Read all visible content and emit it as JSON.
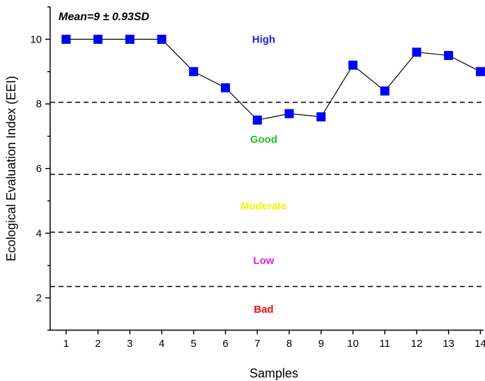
{
  "chart_data": {
    "type": "line",
    "title": "",
    "annotation": "Mean=9 ± 0.93SD",
    "xlabel": "Samples",
    "ylabel": "Ecological Evaluation Index (EEI)",
    "x": [
      1,
      2,
      3,
      4,
      5,
      6,
      7,
      8,
      9,
      10,
      11,
      12,
      13,
      14
    ],
    "x_tick_labels": [
      "1",
      "2",
      "3",
      "4",
      "5",
      "6",
      "7",
      "8",
      "9",
      "10",
      "11",
      "12",
      "13",
      "14"
    ],
    "xlim": [
      0.5,
      14.1
    ],
    "ylim": [
      1.0,
      11.0
    ],
    "y_ticks": [
      2,
      4,
      6,
      8,
      10
    ],
    "y_tick_labels": [
      "2",
      "4",
      "6",
      "8",
      "10"
    ],
    "series": [
      {
        "values": [
          10,
          10,
          10,
          10,
          9.0,
          8.5,
          7.5,
          7.7,
          7.6,
          9.2,
          8.4,
          9.6,
          9.5,
          9.0
        ],
        "color": "#0000ff",
        "marker": "square",
        "line_color": "#000000"
      }
    ],
    "thresholds": [
      {
        "y": 8.05,
        "style": "dashed"
      },
      {
        "y": 5.82,
        "style": "dashed"
      },
      {
        "y": 4.03,
        "style": "dashed"
      },
      {
        "y": 2.35,
        "style": "dashed"
      }
    ],
    "zones": [
      {
        "label": "High",
        "y": 10.0,
        "x": 7.2,
        "color": "#1f1fe0"
      },
      {
        "label": "Good",
        "y": 6.9,
        "x": 7.2,
        "color": "#22c422"
      },
      {
        "label": "Moderate",
        "y": 4.85,
        "x": 7.2,
        "color": "#f2f200"
      },
      {
        "label": "Low",
        "y": 3.15,
        "x": 7.2,
        "color": "#e020e0"
      },
      {
        "label": "Bad",
        "y": 1.65,
        "x": 7.2,
        "color": "#f01010"
      }
    ],
    "grid": false,
    "legend": "none"
  }
}
